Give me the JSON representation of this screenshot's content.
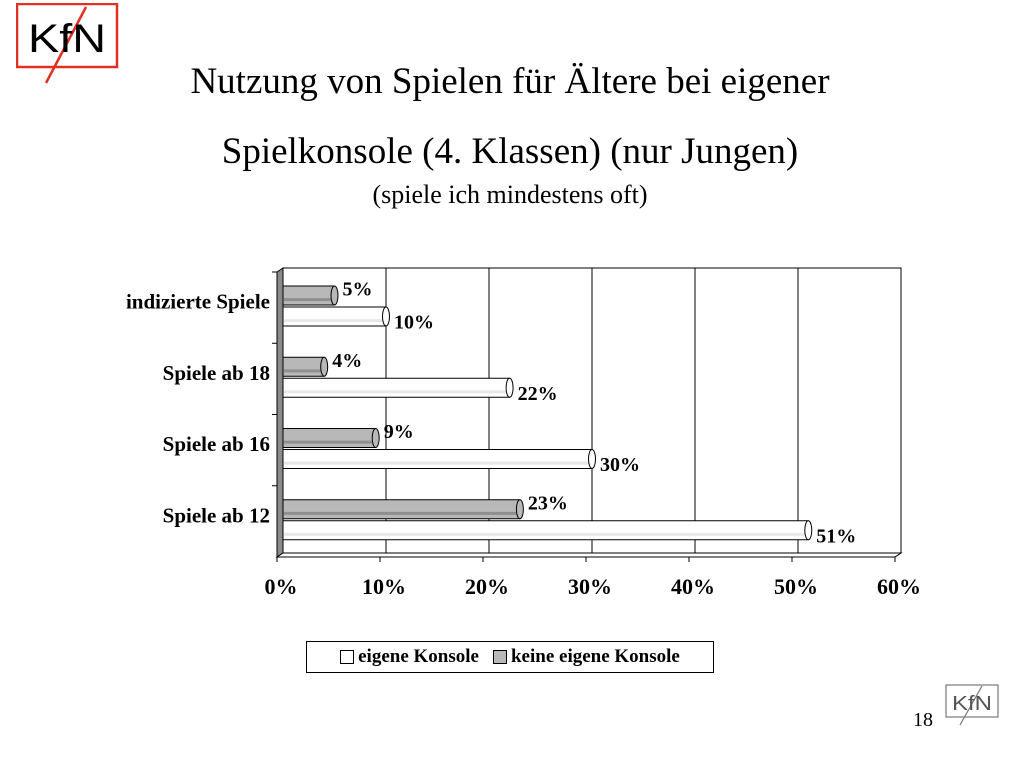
{
  "slide": {
    "title_line1": "Nutzung von Spielen für Ältere bei eigener",
    "title_line2": "Spielkonsole  (4. Klassen) (nur Jungen)",
    "subtitle": "(spiele ich mindestens oft)",
    "page_number": "18"
  },
  "logo": {
    "text": "KfN"
  },
  "colors": {
    "eigene": "#ffffff",
    "keine": "#b8b8b8",
    "wall": "#8a8a8a"
  },
  "chart_data": {
    "type": "bar",
    "orientation": "horizontal",
    "categories": [
      "indizierte Spiele",
      "Spiele ab 18",
      "Spiele ab 16",
      "Spiele ab 12"
    ],
    "series": [
      {
        "name": "eigene Konsole",
        "values": [
          10,
          22,
          30,
          51
        ],
        "labels": [
          "10%",
          "22%",
          "30%",
          "51%"
        ]
      },
      {
        "name": "keine eigene Konsole",
        "values": [
          5,
          4,
          9,
          23
        ],
        "labels": [
          "5%",
          "4%",
          "9%",
          "23%"
        ]
      }
    ],
    "xlim": [
      0,
      60
    ],
    "xticks": [
      "0%",
      "10%",
      "20%",
      "30%",
      "40%",
      "50%",
      "60%"
    ],
    "grid": true,
    "legend_position": "bottom"
  }
}
